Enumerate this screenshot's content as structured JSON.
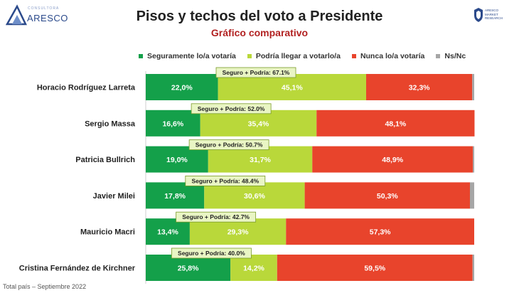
{
  "header": {
    "title": "Pisos y techos del voto a Presidente",
    "subtitle": "Gráfico comparativo"
  },
  "logos": {
    "left": {
      "name": "ARESCO",
      "small": "CONSULTORA",
      "icon": "triangle-logo-icon",
      "color": "#2b4a8b"
    },
    "right": {
      "lines": [
        "ARESCO",
        "MARKET",
        "RESEARCH"
      ],
      "icon": "shield-seal-icon",
      "color": "#2b4a8b"
    }
  },
  "chart_data": {
    "type": "bar",
    "stacked": true,
    "orientation": "horizontal",
    "categories": [
      "Horacio Rodríguez Larreta",
      "Sergio Massa",
      "Patricia Bullrich",
      "Javier Milei",
      "Mauricio Macri",
      "Cristina Fernández de Kirchner"
    ],
    "series": [
      {
        "name": "Seguramente lo/a votaría",
        "color": "#14a04a",
        "values": [
          22.0,
          16.6,
          19.0,
          17.8,
          13.4,
          25.8
        ],
        "labels": [
          "22,0%",
          "16,6%",
          "19,0%",
          "17,8%",
          "13,4%",
          "25,8%"
        ]
      },
      {
        "name": "Podría llegar a votarlo/a",
        "color": "#b9d83a",
        "values": [
          45.1,
          35.4,
          31.7,
          30.6,
          29.3,
          14.2
        ],
        "labels": [
          "45,1%",
          "35,4%",
          "31,7%",
          "30,6%",
          "29,3%",
          "14,2%"
        ]
      },
      {
        "name": "Nunca lo/a votaría",
        "color": "#e8442c",
        "values": [
          32.3,
          48.1,
          48.9,
          50.3,
          57.3,
          59.5
        ],
        "labels": [
          "32,3%",
          "48,1%",
          "48,9%",
          "50,3%",
          "57,3%",
          "59,5%"
        ]
      },
      {
        "name": "Ns/Nc",
        "color": "#a6a6a6",
        "values": [
          0.6,
          0.0,
          0.4,
          1.3,
          0.0,
          0.5
        ],
        "labels": [
          "",
          "",
          "",
          "",
          "",
          ""
        ]
      }
    ],
    "annotations": [
      "Seguro + Podría: 67.1%",
      "Seguro + Podría: 52.0%",
      "Seguro + Podría: 50.7%",
      "Seguro + Podría: 48.4%",
      "Seguro + Podría: 42.7%",
      "Seguro + Podría: 40.0%"
    ],
    "xlim": [
      0,
      100
    ],
    "legend_position": "top",
    "grid": false,
    "footnote": "Total país – Septiembre 2022"
  }
}
